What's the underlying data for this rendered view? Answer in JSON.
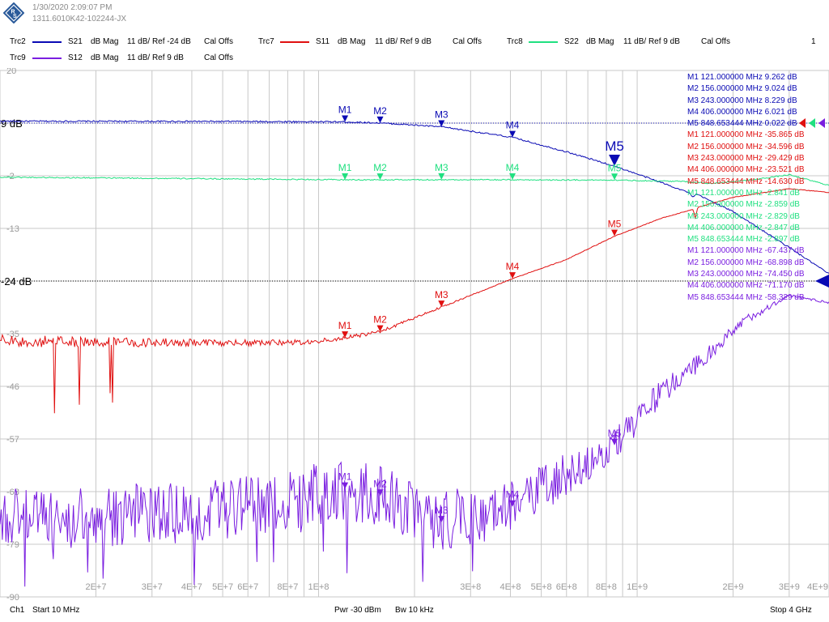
{
  "header": {
    "datetime": "1/30/2020 2:09:07 PM",
    "instrument_id": "1311.6010K42-102244-JX",
    "channel_count": "1"
  },
  "legend": [
    {
      "trace": "Trc2",
      "param": "S21",
      "format": "dB Mag",
      "scale": "11 dB/ Ref -24 dB",
      "cal": "Cal Offs",
      "color": "#0a0ab4"
    },
    {
      "trace": "Trc7",
      "param": "S11",
      "format": "dB Mag",
      "scale": "11 dB/ Ref 9 dB",
      "cal": "Cal Offs",
      "color": "#e01010"
    },
    {
      "trace": "Trc8",
      "param": "S22",
      "format": "dB Mag",
      "scale": "11 dB/ Ref 9 dB",
      "cal": "Cal Offs",
      "color": "#20e080"
    },
    {
      "trace": "Trc9",
      "param": "S12",
      "format": "dB Mag",
      "scale": "11 dB/ Ref 9 dB",
      "cal": "Cal Offs",
      "color": "#7a1ee0"
    }
  ],
  "footer": {
    "channel": "Ch1",
    "start": "Start  10 MHz",
    "pwr": "Pwr  -30 dBm",
    "bw": "Bw  10 kHz",
    "stop": "Stop  4 GHz"
  },
  "chart_data": {
    "type": "line",
    "x_scale": "log",
    "xlim": [
      10000000,
      4000000000
    ],
    "ylim": [
      -90,
      20
    ],
    "y_ticks": [
      {
        "value": 20,
        "label": "20"
      },
      {
        "value": 9,
        "label": "9 dB"
      },
      {
        "value": -2,
        "label": "-2"
      },
      {
        "value": -13,
        "label": "-13"
      },
      {
        "value": -24,
        "label": "-24 dB"
      },
      {
        "value": -35,
        "label": "-35"
      },
      {
        "value": -46,
        "label": "-46"
      },
      {
        "value": -57,
        "label": "-57"
      },
      {
        "value": -68,
        "label": "-68"
      },
      {
        "value": -79,
        "label": "-79"
      },
      {
        "value": -90,
        "label": "-90"
      }
    ],
    "x_tick_labels": [
      {
        "value": 20000000,
        "label": "2E+7"
      },
      {
        "value": 30000000,
        "label": "3E+7"
      },
      {
        "value": 40000000,
        "label": "4E+7"
      },
      {
        "value": 50000000,
        "label": "5E+7"
      },
      {
        "value": 60000000,
        "label": "6E+7"
      },
      {
        "value": 80000000,
        "label": "8E+7"
      },
      {
        "value": 100000000,
        "label": "1E+8"
      },
      {
        "value": 300000000,
        "label": "3E+8"
      },
      {
        "value": 400000000,
        "label": "4E+8"
      },
      {
        "value": 500000000,
        "label": "5E+8"
      },
      {
        "value": 600000000,
        "label": "6E+8"
      },
      {
        "value": 800000000,
        "label": "8E+8"
      },
      {
        "value": 1000000000,
        "label": "1E+9"
      },
      {
        "value": 2000000000,
        "label": "2E+9"
      },
      {
        "value": 3000000000,
        "label": "3E+9"
      },
      {
        "value": 4000000000,
        "label": "4E+9"
      }
    ],
    "ref_lines": [
      {
        "value": 9,
        "color": "#0a0ab4"
      },
      {
        "value": -24,
        "color": "#000000"
      }
    ],
    "series": [
      {
        "name": "S21",
        "color": "#0a0ab4",
        "noise": 0.15,
        "points": [
          [
            10000000,
            9.4
          ],
          [
            50000000,
            9.35
          ],
          [
            121000000,
            9.26
          ],
          [
            156000000,
            9.02
          ],
          [
            243000000,
            8.23
          ],
          [
            406000000,
            6.02
          ],
          [
            600000000,
            3.0
          ],
          [
            848653444,
            0.02
          ],
          [
            1200000000,
            -3.5
          ],
          [
            1450000000,
            -5.5
          ],
          [
            1500000000,
            -6.6
          ],
          [
            1530000000,
            -5.8
          ],
          [
            2000000000,
            -9.5
          ],
          [
            3000000000,
            -17.0
          ],
          [
            4000000000,
            -22.5
          ]
        ]
      },
      {
        "name": "S22",
        "color": "#20e080",
        "noise": 0.12,
        "points": [
          [
            10000000,
            -2.3
          ],
          [
            121000000,
            -2.84
          ],
          [
            156000000,
            -2.86
          ],
          [
            243000000,
            -2.83
          ],
          [
            406000000,
            -2.85
          ],
          [
            848653444,
            -2.9
          ],
          [
            1400000000,
            -3.2
          ],
          [
            1700000000,
            -3.6
          ],
          [
            2200000000,
            -3.0
          ],
          [
            3000000000,
            -1.8
          ],
          [
            4000000000,
            -4.0
          ]
        ]
      },
      {
        "name": "S11",
        "color": "#e01010",
        "noise": 1.3,
        "points": [
          [
            10000000,
            -36.5
          ],
          [
            50000000,
            -37.0
          ],
          [
            90000000,
            -36.8
          ],
          [
            121000000,
            -35.87
          ],
          [
            156000000,
            -34.6
          ],
          [
            243000000,
            -29.43
          ],
          [
            406000000,
            -23.52
          ],
          [
            600000000,
            -19.5
          ],
          [
            848653444,
            -14.63
          ],
          [
            1200000000,
            -10.8
          ],
          [
            1500000000,
            -9.0
          ],
          [
            1520000000,
            -11.0
          ],
          [
            1550000000,
            -8.6
          ],
          [
            2000000000,
            -6.5
          ],
          [
            3000000000,
            -4.7
          ],
          [
            4000000000,
            -5.5
          ]
        ]
      },
      {
        "name": "S12",
        "color": "#7a1ee0",
        "noise": 6.5,
        "points": [
          [
            10000000,
            -74.0
          ],
          [
            50000000,
            -72.0
          ],
          [
            121000000,
            -67.44
          ],
          [
            156000000,
            -68.9
          ],
          [
            243000000,
            -74.45
          ],
          [
            406000000,
            -71.17
          ],
          [
            848653444,
            -58.33
          ],
          [
            1200000000,
            -47.0
          ],
          [
            1700000000,
            -39.0
          ],
          [
            2200000000,
            -32.0
          ],
          [
            3000000000,
            -27.0
          ],
          [
            4000000000,
            -28.5
          ]
        ]
      }
    ],
    "markers": [
      {
        "series": "S21",
        "color": "#0a0ab4",
        "rows": [
          {
            "label": "M1",
            "freq": "121.000000",
            "unit": "MHz",
            "value": "9.262",
            "vunit": "dB",
            "x": 121000000,
            "y": 9.262
          },
          {
            "label": "M2",
            "freq": "156.000000",
            "unit": "MHz",
            "value": "9.024",
            "vunit": "dB",
            "x": 156000000,
            "y": 9.024
          },
          {
            "label": "M3",
            "freq": "243.000000",
            "unit": "MHz",
            "value": "8.229",
            "vunit": "dB",
            "x": 243000000,
            "y": 8.229
          },
          {
            "label": "M4",
            "freq": "406.000000",
            "unit": "MHz",
            "value": "6.021",
            "vunit": "dB",
            "x": 406000000,
            "y": 6.021
          },
          {
            "label": "M5",
            "freq": "848.653444",
            "unit": "MHz",
            "value": "0.022",
            "vunit": "dB",
            "x": 848653444,
            "y": 0.022,
            "active": true
          }
        ]
      },
      {
        "series": "S11",
        "color": "#e01010",
        "rows": [
          {
            "label": "M1",
            "freq": "121.000000",
            "unit": "MHz",
            "value": "-35.865",
            "vunit": "dB",
            "x": 121000000,
            "y": -35.865
          },
          {
            "label": "M2",
            "freq": "156.000000",
            "unit": "MHz",
            "value": "-34.596",
            "vunit": "dB",
            "x": 156000000,
            "y": -34.596
          },
          {
            "label": "M3",
            "freq": "243.000000",
            "unit": "MHz",
            "value": "-29.429",
            "vunit": "dB",
            "x": 243000000,
            "y": -29.429
          },
          {
            "label": "M4",
            "freq": "406.000000",
            "unit": "MHz",
            "value": "-23.521",
            "vunit": "dB",
            "x": 406000000,
            "y": -23.521
          },
          {
            "label": "M5",
            "freq": "848.653444",
            "unit": "MHz",
            "value": "-14.630",
            "vunit": "dB",
            "x": 848653444,
            "y": -14.63
          }
        ]
      },
      {
        "series": "S22",
        "color": "#20e080",
        "rows": [
          {
            "label": "M1",
            "freq": "121.000000",
            "unit": "MHz",
            "value": "-2.841",
            "vunit": "dB",
            "x": 121000000,
            "y": -2.841
          },
          {
            "label": "M2",
            "freq": "156.000000",
            "unit": "MHz",
            "value": "-2.859",
            "vunit": "dB",
            "x": 156000000,
            "y": -2.859
          },
          {
            "label": "M3",
            "freq": "243.000000",
            "unit": "MHz",
            "value": "-2.829",
            "vunit": "dB",
            "x": 243000000,
            "y": -2.829
          },
          {
            "label": "M4",
            "freq": "406.000000",
            "unit": "MHz",
            "value": "-2.847",
            "vunit": "dB",
            "x": 406000000,
            "y": -2.847
          },
          {
            "label": "M5",
            "freq": "848.653444",
            "unit": "MHz",
            "value": "-2.897",
            "vunit": "dB",
            "x": 848653444,
            "y": -2.897
          }
        ]
      },
      {
        "series": "S12",
        "color": "#7a1ee0",
        "rows": [
          {
            "label": "M1",
            "freq": "121.000000",
            "unit": "MHz",
            "value": "-67.437",
            "vunit": "dB",
            "x": 121000000,
            "y": -67.437
          },
          {
            "label": "M2",
            "freq": "156.000000",
            "unit": "MHz",
            "value": "-68.898",
            "vunit": "dB",
            "x": 156000000,
            "y": -68.898
          },
          {
            "label": "M3",
            "freq": "243.000000",
            "unit": "MHz",
            "value": "-74.450",
            "vunit": "dB",
            "x": 243000000,
            "y": -74.45
          },
          {
            "label": "M4",
            "freq": "406.000000",
            "unit": "MHz",
            "value": "-71.170",
            "vunit": "dB",
            "x": 406000000,
            "y": -71.17
          },
          {
            "label": "M5",
            "freq": "848.653444",
            "unit": "MHz",
            "value": "-58.329",
            "vunit": "dB",
            "x": 848653444,
            "y": -58.329
          }
        ]
      }
    ]
  }
}
